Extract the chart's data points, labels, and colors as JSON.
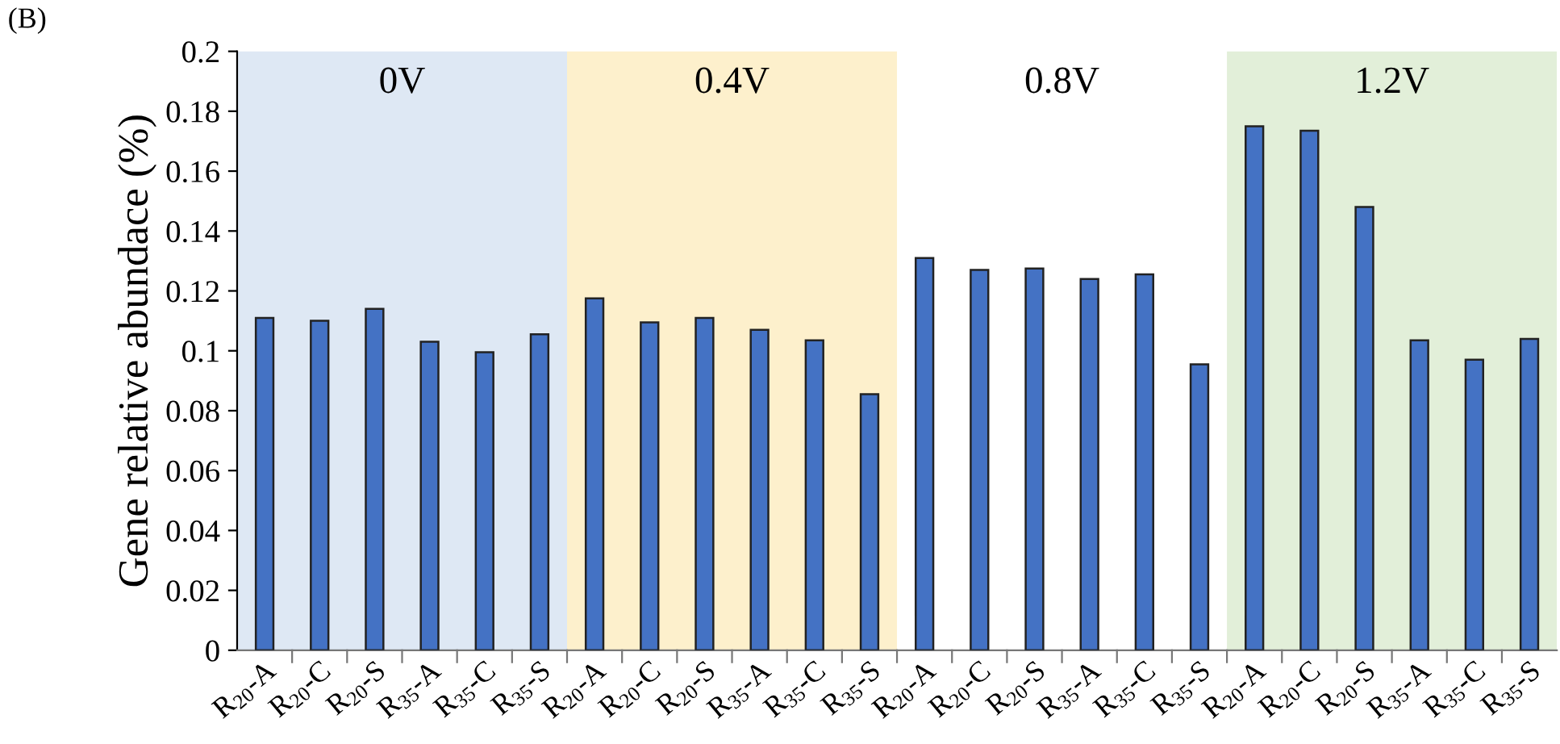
{
  "chart_data": {
    "type": "bar",
    "ylabel": "Gene relative abundace (%)",
    "annotations": [
      "(B)",
      "0V",
      "0.4V",
      "0.8V",
      "1.2V"
    ],
    "categories": [
      "R$_{20}$-A",
      "R$_{20}$-C",
      "R$_{20}$-S",
      "R$_{35}$-A",
      "R$_{35}$-C",
      "R$_{35}$-S",
      "R$_{20}$-A",
      "R$_{20}$-C",
      "R$_{20}$-S",
      "R$_{35}$-A",
      "R$_{35}$-C",
      "R$_{35}$-S",
      "R$_{20}$-A",
      "R$_{20}$-C",
      "R$_{20}$-S",
      "R$_{35}$-A",
      "R$_{35}$-C",
      "R$_{35}$-S",
      "R$_{20}$-A",
      "R$_{20}$-C",
      "R$_{20}$-S",
      "R$_{35}$-A",
      "R$_{35}$-C",
      "R$_{35}$-S"
    ],
    "values": [
      0.111,
      0.11,
      0.114,
      0.103,
      0.0995,
      0.1055,
      0.1175,
      0.1095,
      0.111,
      0.107,
      0.1035,
      0.0855,
      0.131,
      0.127,
      0.1275,
      0.124,
      0.1255,
      0.0955,
      0.175,
      0.1735,
      0.148,
      0.1035,
      0.097,
      0.104
    ],
    "color": "#4472c4",
    "ylim": [
      0,
      0.2
    ],
    "yticks": [
      0,
      0.02,
      0.04,
      0.06,
      0.08,
      0.1,
      0.12,
      0.14,
      0.16,
      0.18,
      0.2
    ],
    "grid": false,
    "legend": false
  }
}
